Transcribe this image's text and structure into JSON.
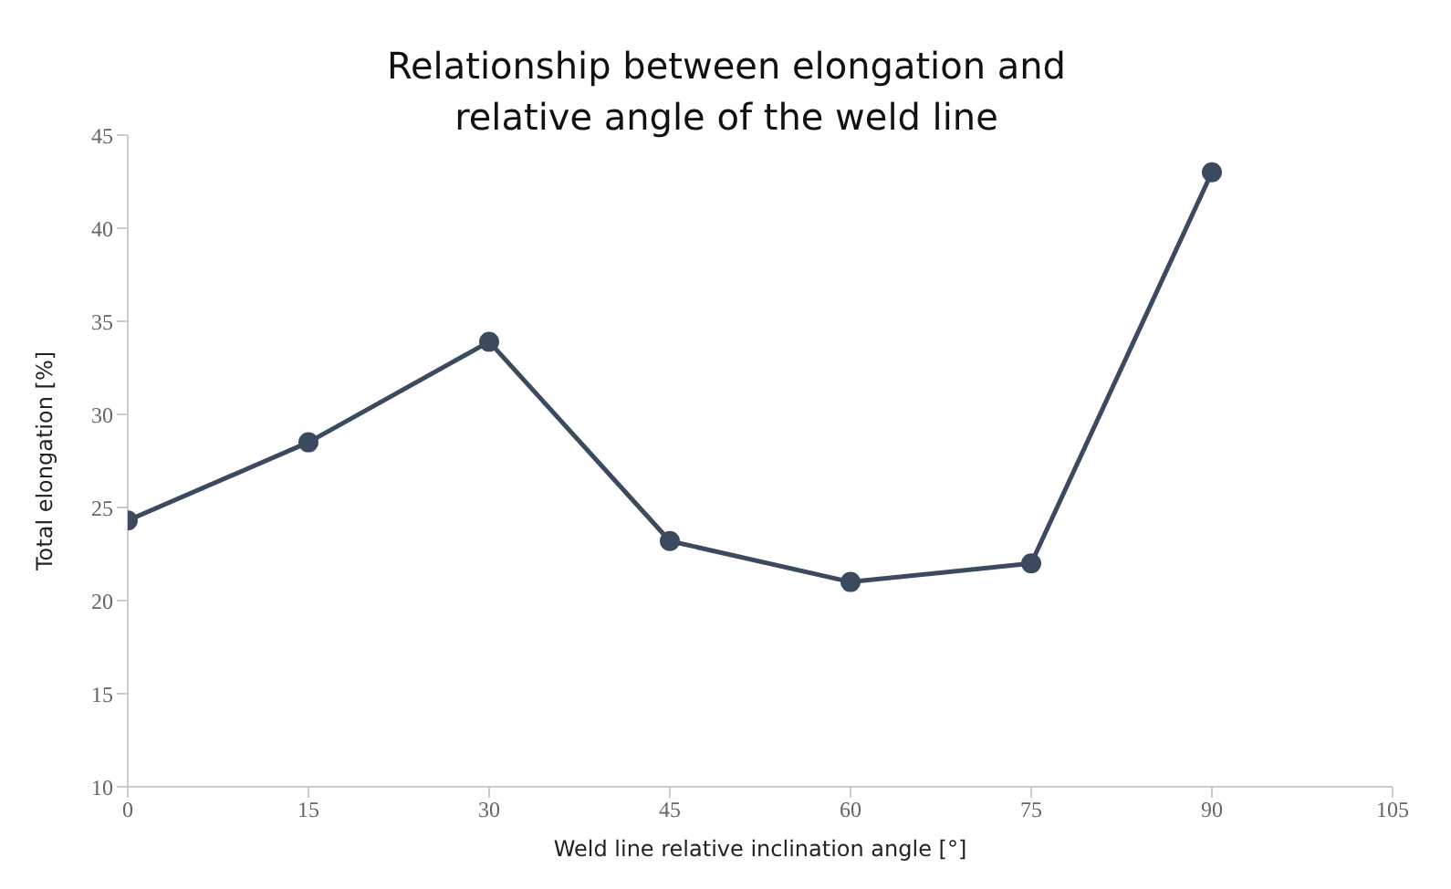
{
  "chart_data": {
    "type": "line",
    "title": "Relationship between elongation and relative angle of the weld line",
    "xlabel": "Weld line relative inclination angle [°]",
    "ylabel": "Total elongation [%]",
    "x": [
      0,
      15,
      30,
      45,
      60,
      75,
      90
    ],
    "series": [
      {
        "color": "#3b4a5e",
        "values": [
          24.3,
          28.5,
          33.9,
          23.2,
          21.0,
          22.0,
          43.0
        ]
      }
    ],
    "xlim": [
      0,
      105
    ],
    "xticks": [
      0,
      15,
      30,
      45,
      60,
      75,
      90,
      105
    ],
    "ylim": [
      10,
      45
    ],
    "yticks": [
      10,
      15,
      20,
      25,
      30,
      35,
      40,
      45
    ],
    "marker": "circle",
    "line_style": "solid",
    "grid": false,
    "legend": false
  }
}
